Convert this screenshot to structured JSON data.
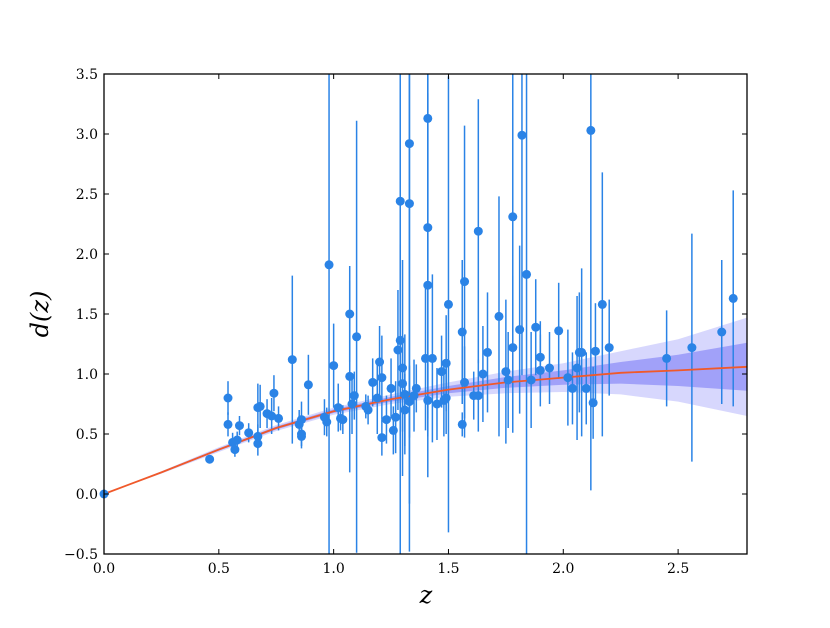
{
  "chart_data": {
    "type": "scatter",
    "title": "",
    "xlabel": "z",
    "ylabel": "d(z)",
    "xlim": [
      0,
      2.8
    ],
    "ylim": [
      -0.5,
      3.5
    ],
    "xticks": [
      0.0,
      0.5,
      1.0,
      1.5,
      2.0,
      2.5
    ],
    "xtick_labels": [
      "0.0",
      "0.5",
      "1.0",
      "1.5",
      "2.0",
      "2.5"
    ],
    "yticks": [
      -0.5,
      0.0,
      0.5,
      1.0,
      1.5,
      2.0,
      2.5,
      3.0,
      3.5
    ],
    "ytick_labels": [
      "−0.5",
      "0.0",
      "0.5",
      "1.0",
      "1.5",
      "2.0",
      "2.5",
      "3.0",
      "3.5"
    ],
    "grid": false,
    "colors": {
      "points": "#2a83e6",
      "fit": "#f0592a",
      "band_1sigma": "#8f8ff7",
      "band_2sigma": "#c9c9fc"
    },
    "points": [
      [
        0.0,
        0.0,
        0.0
      ],
      [
        0.46,
        0.29,
        0.03
      ],
      [
        0.54,
        0.8,
        0.14
      ],
      [
        0.54,
        0.58,
        0.1
      ],
      [
        0.56,
        0.43,
        0.08
      ],
      [
        0.57,
        0.37,
        0.06
      ],
      [
        0.59,
        0.57,
        0.08
      ],
      [
        0.58,
        0.45,
        0.07
      ],
      [
        0.63,
        0.51,
        0.08
      ],
      [
        0.67,
        0.42,
        0.1
      ],
      [
        0.67,
        0.48,
        0.1
      ],
      [
        0.67,
        0.72,
        0.2
      ],
      [
        0.68,
        0.73,
        0.18
      ],
      [
        0.71,
        0.67,
        0.12
      ],
      [
        0.73,
        0.65,
        0.15
      ],
      [
        0.74,
        0.84,
        0.15
      ],
      [
        0.76,
        0.63,
        0.1
      ],
      [
        0.82,
        1.12,
        0.7
      ],
      [
        0.85,
        0.58,
        0.12
      ],
      [
        0.86,
        0.5,
        0.1
      ],
      [
        0.86,
        0.48,
        0.1
      ],
      [
        0.86,
        0.62,
        0.15
      ],
      [
        0.89,
        0.91,
        0.25
      ],
      [
        0.96,
        0.64,
        0.15
      ],
      [
        0.97,
        0.6,
        0.12
      ],
      [
        0.98,
        1.91,
        2.6
      ],
      [
        1.0,
        1.07,
        0.35
      ],
      [
        1.03,
        0.63,
        0.1
      ],
      [
        1.04,
        0.62,
        0.12
      ],
      [
        1.02,
        0.72,
        0.2
      ],
      [
        1.07,
        0.98,
        0.8
      ],
      [
        1.07,
        1.5,
        0.4
      ],
      [
        1.08,
        0.75,
        0.25
      ],
      [
        1.09,
        0.82,
        0.2
      ],
      [
        1.1,
        1.31,
        1.8
      ],
      [
        1.14,
        0.73,
        0.1
      ],
      [
        1.15,
        0.7,
        0.12
      ],
      [
        1.17,
        0.93,
        0.2
      ],
      [
        1.19,
        0.8,
        0.3
      ],
      [
        1.2,
        1.1,
        0.3
      ],
      [
        1.21,
        0.97,
        0.35
      ],
      [
        1.21,
        0.47,
        0.15
      ],
      [
        1.23,
        0.62,
        0.2
      ],
      [
        1.25,
        0.88,
        0.25
      ],
      [
        1.26,
        0.53,
        0.2
      ],
      [
        1.27,
        0.64,
        0.3
      ],
      [
        1.28,
        1.2,
        0.5
      ],
      [
        1.29,
        1.28,
        0.8
      ],
      [
        1.29,
        2.44,
        3.0
      ],
      [
        1.3,
        1.05,
        0.9
      ],
      [
        1.3,
        0.92,
        0.4
      ],
      [
        1.31,
        0.7,
        0.3
      ],
      [
        1.31,
        0.83,
        0.5
      ],
      [
        1.33,
        2.92,
        3.4
      ],
      [
        1.33,
        2.42,
        2.5
      ],
      [
        1.33,
        0.77,
        0.3
      ],
      [
        1.35,
        0.82,
        0.3
      ],
      [
        1.36,
        0.88,
        0.2
      ],
      [
        1.4,
        1.13,
        0.6
      ],
      [
        1.41,
        1.74,
        1.6
      ],
      [
        1.41,
        2.22,
        1.5
      ],
      [
        1.41,
        3.13,
        2.5
      ],
      [
        1.41,
        0.78,
        0.3
      ],
      [
        1.43,
        1.13,
        0.7
      ],
      [
        1.45,
        0.75,
        0.3
      ],
      [
        1.47,
        1.02,
        0.3
      ],
      [
        1.48,
        0.78,
        0.3
      ],
      [
        1.49,
        1.09,
        0.4
      ],
      [
        1.5,
        1.58,
        1.9
      ],
      [
        1.49,
        0.8,
        0.3
      ],
      [
        1.56,
        0.58,
        0.1
      ],
      [
        1.56,
        1.35,
        0.6
      ],
      [
        1.57,
        1.77,
        1.3
      ],
      [
        1.57,
        0.93,
        0.3
      ],
      [
        1.61,
        0.82,
        0.2
      ],
      [
        1.63,
        0.82,
        0.3
      ],
      [
        1.63,
        2.19,
        1.1
      ],
      [
        1.65,
        1.0,
        0.4
      ],
      [
        1.67,
        1.18,
        0.5
      ],
      [
        1.72,
        1.48,
        1.0
      ],
      [
        1.75,
        1.02,
        0.6
      ],
      [
        1.76,
        0.95,
        0.4
      ],
      [
        1.78,
        2.31,
        1.8
      ],
      [
        1.78,
        1.22,
        0.6
      ],
      [
        1.81,
        1.37,
        0.7
      ],
      [
        1.82,
        2.99,
        2.0
      ],
      [
        1.84,
        1.83,
        2.8
      ],
      [
        1.86,
        0.95,
        0.4
      ],
      [
        1.88,
        1.39,
        0.4
      ],
      [
        1.9,
        1.03,
        0.3
      ],
      [
        1.9,
        1.14,
        0.3
      ],
      [
        1.94,
        1.05,
        0.3
      ],
      [
        1.98,
        1.36,
        0.4
      ],
      [
        2.02,
        0.97,
        0.4
      ],
      [
        2.04,
        0.88,
        0.3
      ],
      [
        2.06,
        1.05,
        0.6
      ],
      [
        2.07,
        1.18,
        0.5
      ],
      [
        2.08,
        1.18,
        0.7
      ],
      [
        2.1,
        0.88,
        0.3
      ],
      [
        2.12,
        3.03,
        3.0
      ],
      [
        2.13,
        0.76,
        0.3
      ],
      [
        2.14,
        1.19,
        0.4
      ],
      [
        2.17,
        1.58,
        1.1
      ],
      [
        2.2,
        1.22,
        0.4
      ],
      [
        2.45,
        1.13,
        0.4
      ],
      [
        2.56,
        1.22,
        0.95
      ],
      [
        2.69,
        1.35,
        0.6
      ],
      [
        2.74,
        1.63,
        0.9
      ]
    ],
    "fit": {
      "z": [
        0,
        0.25,
        0.5,
        0.75,
        1.0,
        1.25,
        1.5,
        1.75,
        2.0,
        2.25,
        2.5,
        2.8
      ],
      "d": [
        0,
        0.18,
        0.37,
        0.55,
        0.69,
        0.79,
        0.87,
        0.93,
        0.97,
        1.01,
        1.03,
        1.06
      ],
      "sigma1": [
        0,
        0.005,
        0.01,
        0.012,
        0.015,
        0.02,
        0.03,
        0.045,
        0.06,
        0.09,
        0.13,
        0.2
      ],
      "sigma2": [
        0,
        0.01,
        0.02,
        0.025,
        0.03,
        0.04,
        0.06,
        0.09,
        0.12,
        0.18,
        0.26,
        0.41
      ]
    }
  }
}
